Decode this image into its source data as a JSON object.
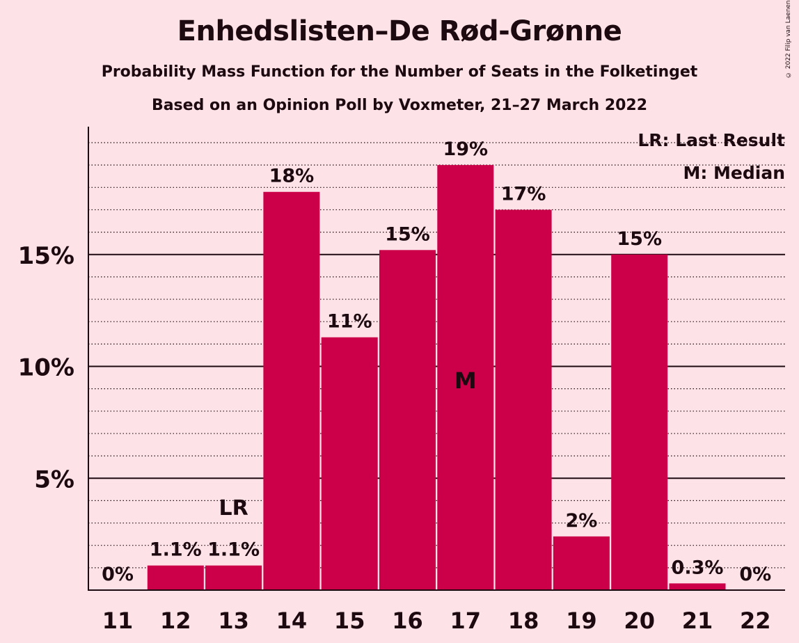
{
  "title": "Enhedslisten–De Rød-Grønne",
  "subtitle": "Probability Mass Function for the Number of Seats in the Folketinget",
  "subtitle2": "Based on an Opinion Poll by Voxmeter, 21–27 March 2022",
  "copyright": "© 2022 Filip van Laenen",
  "colors": {
    "background": "#fde3e7",
    "bar": "#cc0049",
    "text": "#1c0a10"
  },
  "chart_data": {
    "type": "bar",
    "categories": [
      "11",
      "12",
      "13",
      "14",
      "15",
      "16",
      "17",
      "18",
      "19",
      "20",
      "21",
      "22"
    ],
    "values": [
      0,
      1.1,
      1.1,
      17.8,
      11.3,
      15.2,
      19.0,
      17.0,
      2.4,
      15.0,
      0.3,
      0
    ],
    "data_labels": [
      "0%",
      "1.1%",
      "1.1%",
      "18%",
      "11%",
      "15%",
      "19%",
      "17%",
      "2%",
      "15%",
      "0.3%",
      "0%"
    ],
    "ylim": [
      0,
      20.6
    ],
    "major_ticks": [
      5,
      10,
      15
    ],
    "major_tick_labels": [
      "5%",
      "10%",
      "15%"
    ],
    "minor_tick_step": 1,
    "grid": true,
    "last_result": {
      "category": "13",
      "label": "LR"
    },
    "median": {
      "category": "17",
      "label": "M"
    },
    "legend": {
      "position": "top-right",
      "entries": [
        "LR: Last Result",
        "M: Median"
      ]
    }
  }
}
